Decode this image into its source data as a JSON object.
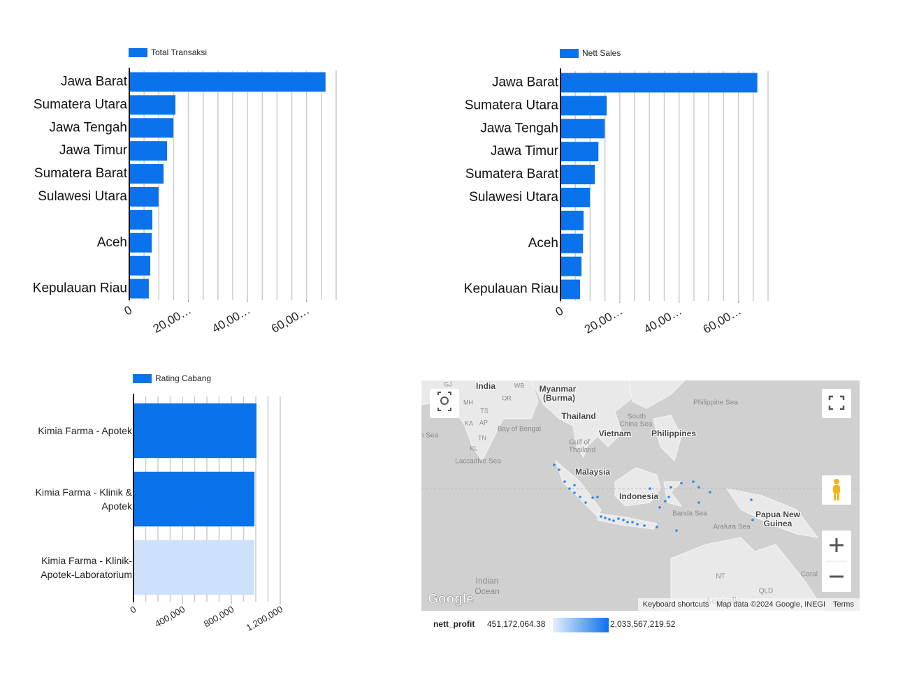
{
  "chart_data": [
    {
      "type": "hbar",
      "series": [
        {
          "name": "Total Transaksi",
          "color": "#0a72eb",
          "values": [
            66400,
            15600,
            14900,
            12800,
            11600,
            9900,
            7800,
            7600,
            7100,
            6600
          ]
        }
      ],
      "categories": [
        "Jawa Barat",
        "Sumatera Utara",
        "Jawa Tengah",
        "Jawa Timur",
        "Sumatera Barat",
        "Sulawesi Utara",
        null,
        "Aceh",
        null,
        "Kepulauan Riau"
      ],
      "xlim": [
        0,
        70000
      ],
      "xticks": [
        0,
        {
          "value": 20000,
          "label": "20,00…"
        },
        {
          "value": 40000,
          "label": "40,00…"
        },
        {
          "value": 60000,
          "label": "60,00…"
        }
      ],
      "xgrid": [
        5000,
        10000,
        15000,
        20000,
        25000,
        30000,
        35000,
        40000,
        45000,
        50000,
        55000,
        60000,
        65000,
        70000
      ]
    },
    {
      "type": "hbar",
      "series": [
        {
          "name": "Nett Sales",
          "color": "#0a72eb",
          "values": [
            66400,
            15600,
            14900,
            12800,
            11600,
            9900,
            7800,
            7600,
            7100,
            6600
          ]
        }
      ],
      "categories": [
        "Jawa Barat",
        "Sumatera Utara",
        "Jawa Tengah",
        "Jawa Timur",
        "Sumatera Barat",
        "Sulawesi Utara",
        null,
        "Aceh",
        null,
        "Kepulauan Riau"
      ],
      "xlim": [
        0,
        70000
      ],
      "xticks": [
        0,
        {
          "value": 20000,
          "label": "20,00…"
        },
        {
          "value": 40000,
          "label": "40,00…"
        },
        {
          "value": 60000,
          "label": "60,00…"
        }
      ],
      "xgrid": [
        5000,
        10000,
        15000,
        20000,
        25000,
        30000,
        35000,
        40000,
        45000,
        50000,
        55000,
        60000,
        65000,
        70000
      ]
    },
    {
      "type": "hbar",
      "series": [
        {
          "name": "Rating Cabang",
          "color": "#0a72eb",
          "colors": [
            "#0a72eb",
            "#0a72eb",
            "#cde1fb"
          ],
          "values": [
            1006000,
            989000,
            989000
          ]
        }
      ],
      "categories": [
        "Kimia Farma - Apotek",
        "Kimia Farma - Klinik & Apotek",
        "Kimia Farma - Klinik-Apotek-Laboratorium"
      ],
      "xlim": [
        0,
        1200000
      ],
      "xticks": [
        0,
        {
          "value": 400000,
          "label": "400,000"
        },
        {
          "value": 800000,
          "label": "800,000"
        },
        {
          "value": 1200000,
          "label": "1,200,000"
        }
      ],
      "xgrid": [
        100000,
        200000,
        300000,
        400000,
        500000,
        600000,
        700000,
        800000,
        900000,
        1000000,
        1100000,
        1200000
      ]
    }
  ],
  "map": {
    "labels": [
      "India",
      "Myanmar",
      "(Burma)",
      "Thailand",
      "Vietnam",
      "Philippines",
      "Malaysia",
      "Indonesia",
      "Papua New",
      "Guinea",
      "South",
      "China Sea",
      "Bay of Bengal",
      "Gulf of",
      "Thailand",
      "Laccadive Sea",
      "Philippine Sea",
      "Banda Sea",
      "Arafura Sea",
      "Indian",
      "Ocean",
      "NT",
      "QLD",
      "Coral",
      "Australia",
      "GJ",
      "MH",
      "OR",
      "WB",
      "TS",
      "KA",
      "AP",
      "TN",
      "KL",
      "n Sea"
    ],
    "logo": "Google",
    "attribution": [
      "Keyboard shortcuts",
      "Map data ©2024 Google, INEGI",
      "Terms"
    ],
    "legend": {
      "title": "nett_profit",
      "min": "451,172,064.38",
      "max": "2,033,567,219.52"
    }
  }
}
